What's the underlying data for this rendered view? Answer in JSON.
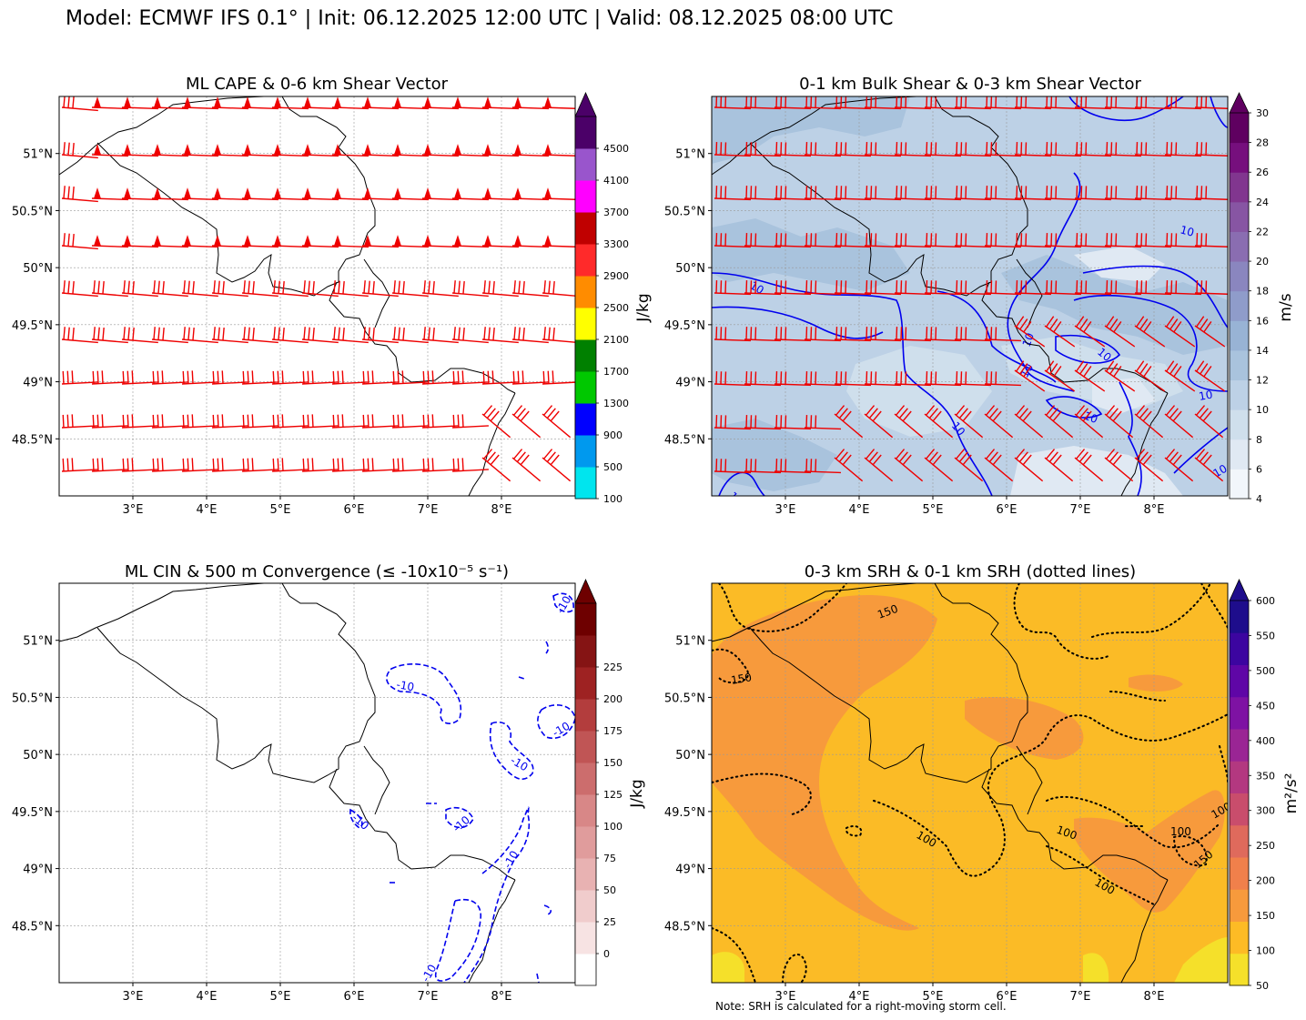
{
  "suptitle": "Model: ECMWF IFS 0.1° | Init: 06.12.2025 12:00 UTC | Valid: 08.12.2025 08:00 UTC",
  "axes": {
    "lon_ticks": [
      "3°E",
      "4°E",
      "5°E",
      "6°E",
      "7°E",
      "8°E"
    ],
    "lat_ticks": [
      "51°N",
      "50.5°N",
      "50°N",
      "49.5°N",
      "49°N",
      "48.5°N"
    ],
    "lon_values": [
      3,
      4,
      5,
      6,
      7,
      8
    ],
    "lat_values": [
      51,
      50.5,
      50,
      49.5,
      49,
      48.5
    ],
    "lon_range": [
      2.0,
      9.0
    ],
    "lat_range": [
      48.0,
      51.5
    ]
  },
  "panels": [
    {
      "title": "ML CAPE & 0-6 km Shear Vector",
      "cbar_label": "J/kg",
      "cbar_ticks": [
        "100",
        "500",
        "900",
        "1300",
        "1700",
        "2100",
        "2500",
        "2900",
        "3300",
        "3700",
        "4100",
        "4500"
      ],
      "cbar_colors": [
        "#00e5ee",
        "#0099ee",
        "#0000ff",
        "#00c800",
        "#008000",
        "#ffff00",
        "#ff8c00",
        "#ff2a2a",
        "#c00000",
        "#ff00ff",
        "#9955cc",
        "#4b0068"
      ],
      "barb_color": "#ee0000"
    },
    {
      "title": "0-1 km Bulk Shear & 0-3 km Shear Vector",
      "cbar_label": "m/s",
      "cbar_ticks": [
        "4",
        "6",
        "8",
        "10",
        "12",
        "14",
        "16",
        "18",
        "20",
        "22",
        "24",
        "26",
        "28",
        "30"
      ],
      "cbar_colors": [
        "#f2f6fb",
        "#e0e9f3",
        "#cfdfec",
        "#bdd1e6",
        "#a9c3dd",
        "#98b3d5",
        "#8f9cca",
        "#8a86bf",
        "#8a6db1",
        "#8755a3",
        "#81368f",
        "#760f7d",
        "#5f0060"
      ],
      "contour_labels": [
        "10",
        "10",
        "10",
        "10",
        "10",
        "10",
        "10",
        "10",
        "10",
        "10"
      ],
      "barb_color": "#ee0000"
    },
    {
      "title": "ML CIN & 500 m Convergence (≤ -10x10⁻⁵ s⁻¹)",
      "cbar_label": "J/kg",
      "cbar_ticks": [
        "0",
        "25",
        "50",
        "75",
        "100",
        "125",
        "150",
        "175",
        "200",
        "225"
      ],
      "cbar_colors": [
        "#ffffff",
        "#f7e3e3",
        "#f0cccc",
        "#e8b2b2",
        "#e09c9c",
        "#d88787",
        "#cc6d6d",
        "#c05555",
        "#b33d3d",
        "#9e2222",
        "#851414",
        "#6e0000"
      ],
      "contour_labels": [
        "-10",
        "-10",
        "-10",
        "-10",
        "-10",
        "-10",
        "-10",
        "-10"
      ]
    },
    {
      "title": "0-3 km SRH & 0-1 km SRH (dotted lines)",
      "cbar_label": "m²/s²",
      "cbar_ticks": [
        "50",
        "100",
        "150",
        "200",
        "250",
        "300",
        "350",
        "400",
        "450",
        "500",
        "550",
        "600"
      ],
      "cbar_colors": [
        "#f5e02a",
        "#fdbb25",
        "#f79a3c",
        "#f0804b",
        "#df6a5c",
        "#c94d6c",
        "#b33880",
        "#9a2594",
        "#7e12a3",
        "#5f06a6",
        "#3c05a0",
        "#1e0d8c"
      ],
      "contour_labels": [
        "150",
        "150",
        "100",
        "100",
        "100",
        "150",
        "100",
        "100"
      ],
      "note": "Note: SRH is calculated for a right-moving storm cell."
    }
  ]
}
